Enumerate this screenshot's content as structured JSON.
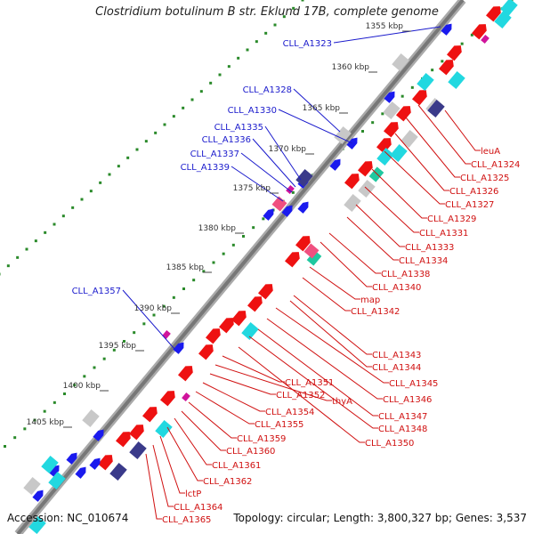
{
  "title": "Clostridium botulinum B str. Eklund 17B, complete genome",
  "footer": {
    "accession": "Accession: NC_010674",
    "topology": "Topology: circular; Length: 3,800,327 bp; Genes: 3,537"
  },
  "ruler": [
    {
      "label": "1355 kbp"
    },
    {
      "label": "1360 kbp"
    },
    {
      "label": "1365 kbp"
    },
    {
      "label": "1370 kbp"
    },
    {
      "label": "1375 kbp"
    },
    {
      "label": "1380 kbp"
    },
    {
      "label": "1385 kbp"
    },
    {
      "label": "1390 kbp"
    },
    {
      "label": "1395 kbp"
    },
    {
      "label": "1400 kbp"
    },
    {
      "label": "1405 kbp"
    }
  ],
  "genes_left": [
    {
      "label": "CLL_A1323"
    },
    {
      "label": "CLL_A1328"
    },
    {
      "label": "CLL_A1330"
    },
    {
      "label": "CLL_A1335"
    },
    {
      "label": "CLL_A1336"
    },
    {
      "label": "CLL_A1337"
    },
    {
      "label": "CLL_A1339"
    },
    {
      "label": "CLL_A1357"
    }
  ],
  "genes_right": [
    {
      "label": "leuA"
    },
    {
      "label": "CLL_A1324"
    },
    {
      "label": "CLL_A1325"
    },
    {
      "label": "CLL_A1326"
    },
    {
      "label": "CLL_A1327"
    },
    {
      "label": "CLL_A1329"
    },
    {
      "label": "CLL_A1331"
    },
    {
      "label": "CLL_A1333"
    },
    {
      "label": "CLL_A1334"
    },
    {
      "label": "CLL_A1338"
    },
    {
      "label": "CLL_A1340"
    },
    {
      "label": "map"
    },
    {
      "label": "CLL_A1342"
    },
    {
      "label": "CLL_A1343"
    },
    {
      "label": "CLL_A1344"
    },
    {
      "label": "CLL_A1345"
    },
    {
      "label": "CLL_A1346"
    },
    {
      "label": "CLL_A1347"
    },
    {
      "label": "CLL_A1348"
    },
    {
      "label": "CLL_A1350"
    },
    {
      "label": "CLL_A1351"
    },
    {
      "label": "thyA"
    },
    {
      "label": "CLL_A1352"
    },
    {
      "label": "CLL_A1354"
    },
    {
      "label": "CLL_A1355"
    },
    {
      "label": "CLL_A1359"
    },
    {
      "label": "CLL_A1360"
    },
    {
      "label": "CLL_A1361"
    },
    {
      "label": "CLL_A1362"
    },
    {
      "label": "lctP"
    },
    {
      "label": "CLL_A1364"
    },
    {
      "label": "CLL_A1365"
    }
  ],
  "colors": {
    "backbone": "#8a8a8a",
    "left_label": "#1a1acc",
    "right_label": "#d01010",
    "forward": "#1a1aee",
    "reverse": "#ee1111",
    "gc_dots": "#2a8a2a",
    "cyan": "#22d8e0",
    "purple": "#3a3a8a",
    "grey": "#c8c8c8",
    "magenta": "#d0149c",
    "teal": "#20c8a0"
  }
}
